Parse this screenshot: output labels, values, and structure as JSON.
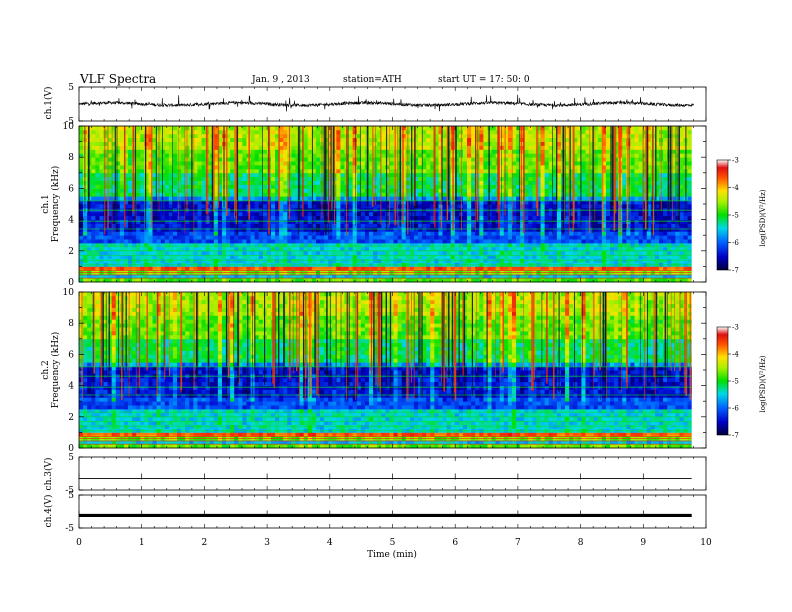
{
  "header": {
    "title": "VLF  Spectra",
    "date": "Jan.  9  ,  2013",
    "station": "station=ATH",
    "start": "start  UT  =    17: 50: 0"
  },
  "chart_data": [
    {
      "type": "line",
      "id": "ch1",
      "ylabel": "ch.1(V)",
      "ylim": [
        -5,
        5
      ],
      "yticks": [
        "5",
        "-5"
      ],
      "description_values": "noisy waveform around 0 V with spikes to about +/-2.5 V",
      "x_range": [
        0,
        9.8
      ]
    },
    {
      "type": "heatmap",
      "id": "ch1-spectrogram",
      "ylabel_top": "ch.1",
      "ylabel": "Frequency  (kHz)",
      "ylim": [
        0,
        10
      ],
      "yticks": [
        "0",
        "2",
        "4",
        "6",
        "8",
        "10"
      ],
      "x_range": [
        0,
        9.8
      ],
      "colorbar": {
        "label": "log(PSD)(V²/Hz)",
        "range": [
          -7,
          -3
        ],
        "ticks": [
          "-3",
          "-4",
          "-5",
          "-6",
          "-7"
        ]
      }
    },
    {
      "type": "heatmap",
      "id": "ch2-spectrogram",
      "ylabel_top": "ch.2",
      "ylabel": "Frequency  (kHz)",
      "ylim": [
        0,
        10
      ],
      "yticks": [
        "0",
        "2",
        "4",
        "6",
        "8",
        "10"
      ],
      "x_range": [
        0,
        9.8
      ],
      "colorbar": {
        "label": "log(PSD)(V²/Hz)",
        "range": [
          -7,
          -3
        ],
        "ticks": [
          "-3",
          "-4",
          "-5",
          "-6",
          "-7"
        ]
      }
    },
    {
      "type": "line",
      "id": "ch3",
      "ylabel": "ch.3(V)",
      "ylim": [
        -5,
        5
      ],
      "yticks": [
        "5",
        "-5"
      ],
      "value": -1.5,
      "x_range": [
        0,
        9.8
      ]
    },
    {
      "type": "line",
      "id": "ch4",
      "ylabel": "ch.4(V)",
      "ylim": [
        -5,
        5
      ],
      "yticks": [
        "5",
        "-5"
      ],
      "value": -1.2,
      "x_range": [
        0,
        9.8
      ]
    }
  ],
  "x_axis": {
    "label": "Time  (min)",
    "range": [
      0,
      10
    ],
    "ticks": [
      "0",
      "1",
      "2",
      "3",
      "4",
      "5",
      "6",
      "7",
      "8",
      "9",
      "10"
    ]
  }
}
